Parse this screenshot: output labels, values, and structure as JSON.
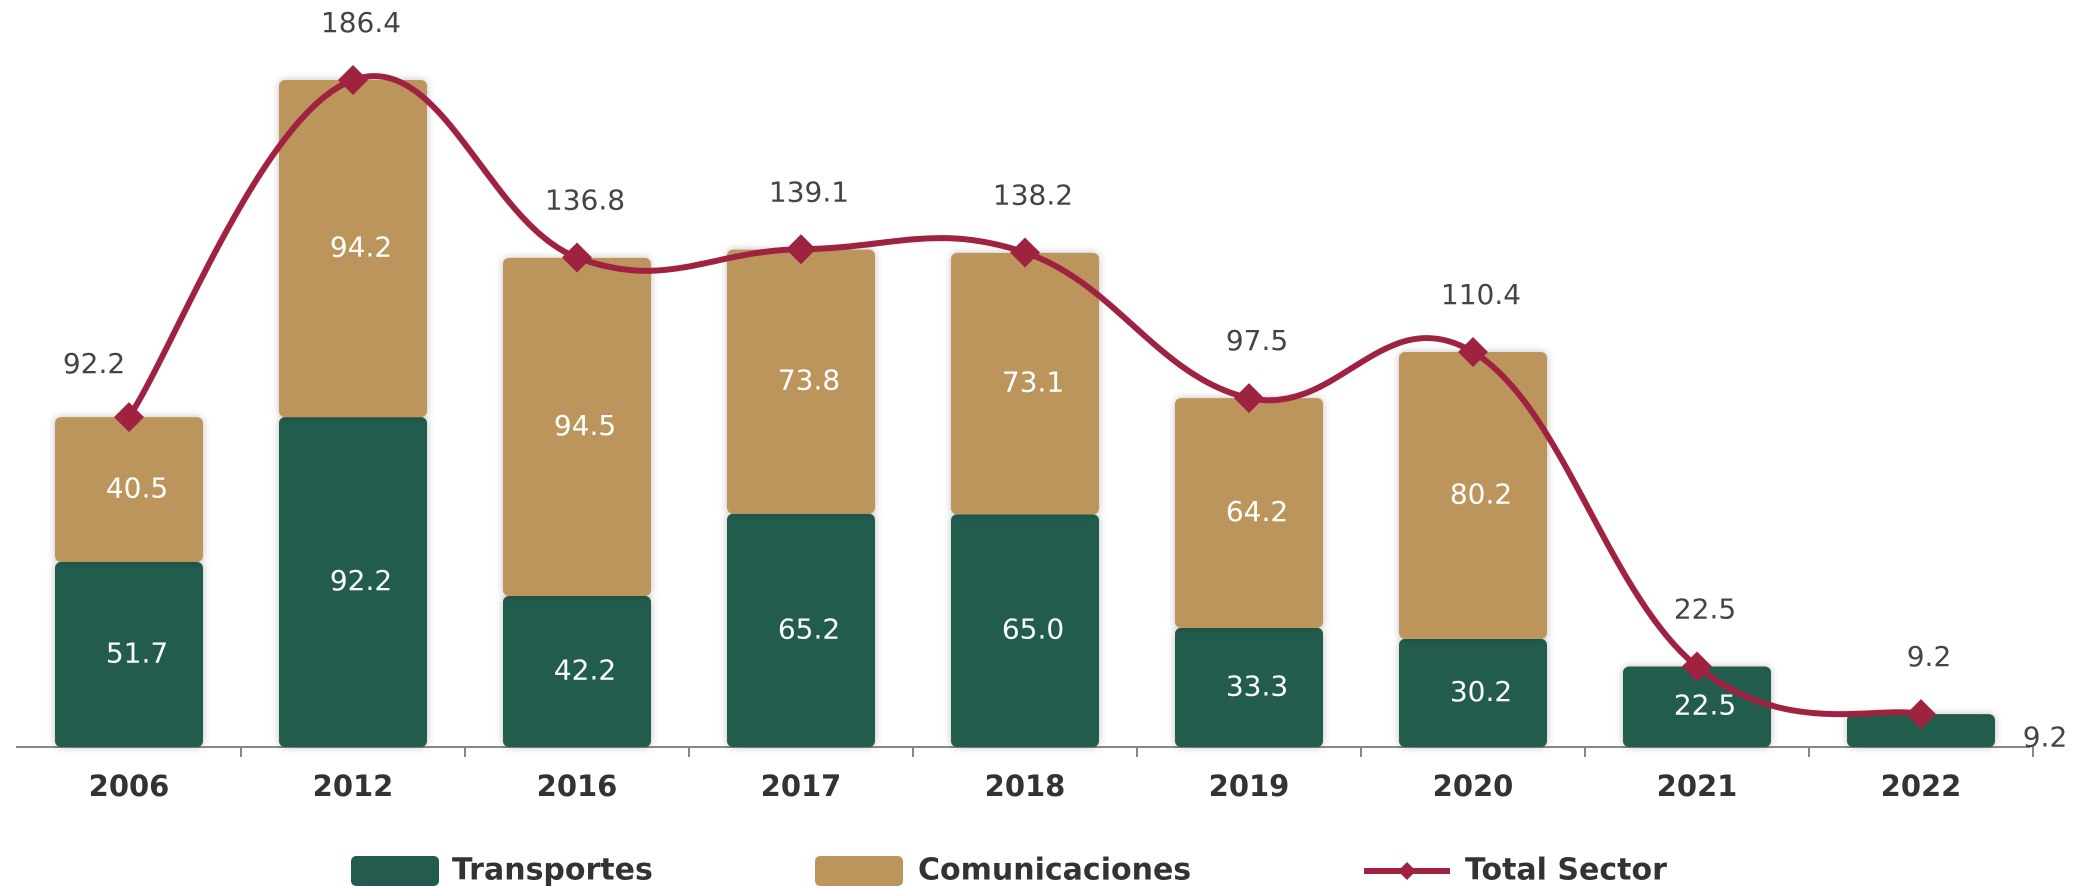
{
  "chart_data": {
    "type": "bar",
    "categories": [
      "2006",
      "2012",
      "2016",
      "2017",
      "2018",
      "2019",
      "2020",
      "2021",
      "2022"
    ],
    "series": [
      {
        "name": "Transportes",
        "type": "bar",
        "color": "#235b4e",
        "values": [
          51.7,
          92.2,
          42.2,
          65.2,
          65.0,
          33.3,
          30.2,
          22.5,
          9.2
        ],
        "value_labels": [
          "51.7",
          "92.2",
          "42.2",
          "65.2",
          "65.0",
          "33.3",
          "30.2",
          "22.5",
          "9.2"
        ]
      },
      {
        "name": "Comunicaciones",
        "type": "bar",
        "color": "#bc955c",
        "values": [
          40.5,
          94.2,
          94.5,
          73.8,
          73.1,
          64.2,
          80.2,
          null,
          null
        ]
      },
      {
        "name": "Total Sector",
        "type": "line",
        "color": "#9f2241",
        "values": [
          92.2,
          186.4,
          136.8,
          139.1,
          138.2,
          97.5,
          110.4,
          22.5,
          9.2
        ]
      }
    ],
    "stacked": true,
    "legend": "bottom"
  }
}
